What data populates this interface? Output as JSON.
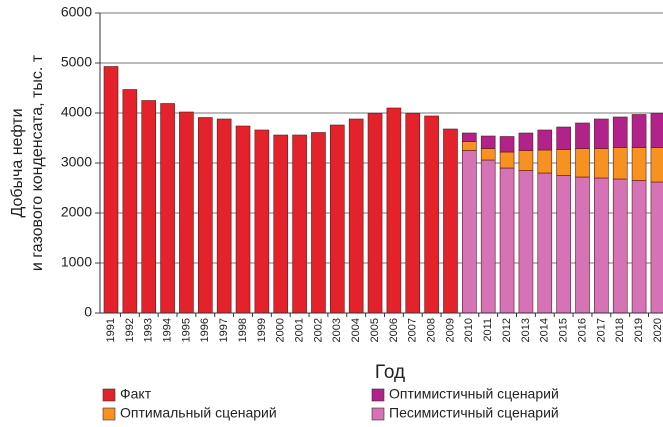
{
  "chart_data": {
    "type": "stacked-bar",
    "xlabel": "Год",
    "ylabel": [
      "Добыча нефти",
      "и газового конденсата, тыс. т"
    ],
    "categories": [
      "1991",
      "1992",
      "1993",
      "1994",
      "1995",
      "1996",
      "1997",
      "1998",
      "1999",
      "2000",
      "2001",
      "2002",
      "2003",
      "2004",
      "2005",
      "2006",
      "2007",
      "2008",
      "2009",
      "2010",
      "2011",
      "2012",
      "2013",
      "2014",
      "2015",
      "2016",
      "2017",
      "2018",
      "2019",
      "2020"
    ],
    "series": [
      {
        "name": "Факт",
        "color": "#e3222b",
        "values": [
          4930,
          4470,
          4250,
          4190,
          4020,
          3910,
          3880,
          3740,
          3660,
          3560,
          3560,
          3610,
          3760,
          3880,
          3990,
          4100,
          3990,
          3940,
          3680,
          null,
          null,
          null,
          null,
          null,
          null,
          null,
          null,
          null,
          null,
          null
        ]
      },
      {
        "name": "Песимистичный сценарий",
        "color": "#d672b6",
        "values": [
          null,
          null,
          null,
          null,
          null,
          null,
          null,
          null,
          null,
          null,
          null,
          null,
          null,
          null,
          null,
          null,
          null,
          null,
          null,
          3250,
          3060,
          2900,
          2850,
          2800,
          2750,
          2720,
          2700,
          2680,
          2650,
          2620
        ]
      },
      {
        "name": "Оптимальный сценарий",
        "color": "#f7911f",
        "values": [
          null,
          null,
          null,
          null,
          null,
          null,
          null,
          null,
          null,
          null,
          null,
          null,
          null,
          null,
          null,
          null,
          null,
          null,
          null,
          180,
          230,
          320,
          400,
          460,
          520,
          570,
          590,
          630,
          660,
          690
        ]
      },
      {
        "name": "Оптимистичный сценарий",
        "color": "#b1228a",
        "values": [
          null,
          null,
          null,
          null,
          null,
          null,
          null,
          null,
          null,
          null,
          null,
          null,
          null,
          null,
          null,
          null,
          null,
          null,
          null,
          170,
          250,
          310,
          350,
          400,
          450,
          510,
          590,
          610,
          660,
          680
        ]
      }
    ],
    "ylim": [
      0,
      6000
    ],
    "yticks": [
      0,
      1000,
      2000,
      3000,
      4000,
      5000,
      6000
    ],
    "grid": true
  }
}
